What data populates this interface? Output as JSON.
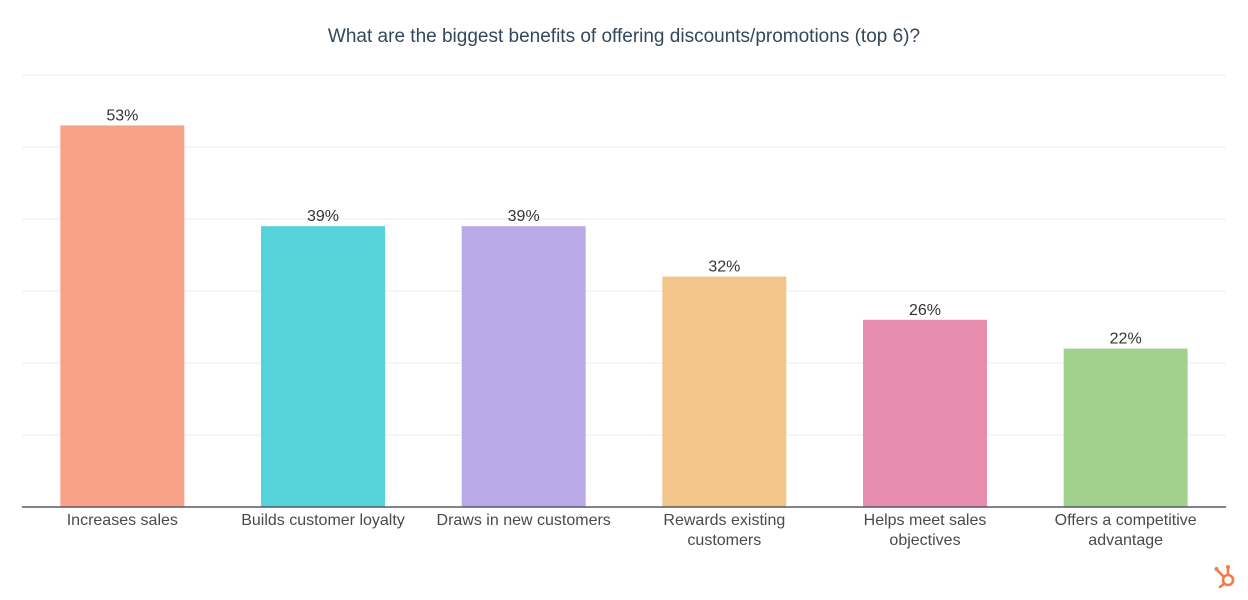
{
  "chart_data": {
    "type": "bar",
    "title": "What are the biggest benefits of offering discounts/promotions (top 6)?",
    "categories": [
      [
        "Increases sales"
      ],
      [
        "Builds customer loyalty"
      ],
      [
        "Draws in new customers"
      ],
      [
        "Rewards existing",
        "customers"
      ],
      [
        "Helps meet sales",
        "objectives"
      ],
      [
        "Offers a competitive",
        "advantage"
      ]
    ],
    "values": [
      53,
      39,
      39,
      32,
      26,
      22
    ],
    "value_labels": [
      "53%",
      "39%",
      "39%",
      "32%",
      "26%",
      "22%"
    ],
    "colors": [
      "#f9a28a",
      "#55d3da",
      "#bbaae8",
      "#f2c68a",
      "#e98daf",
      "#a2d18e"
    ],
    "ylim": [
      0,
      60
    ],
    "grid": true,
    "xlabel": "",
    "ylabel": ""
  },
  "brand": {
    "logo_color": "#f07c4a",
    "logo_icon": "hubspot-sprocket-icon"
  }
}
